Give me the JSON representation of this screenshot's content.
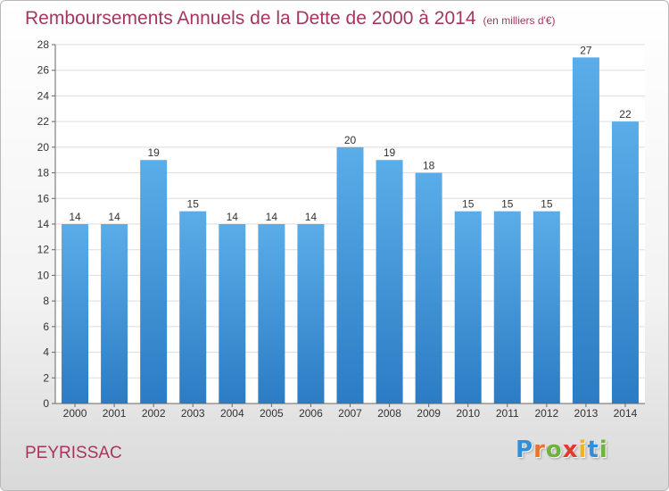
{
  "title": "Remboursements Annuels de la Dette de 2000 à 2014",
  "unit": "(en milliers d'€)",
  "place": "PEYRISSAC",
  "logo": {
    "letters": [
      "P",
      "r",
      "o",
      "x",
      "i",
      "t",
      "i"
    ],
    "colors": [
      "#2f8fd8",
      "#e8732a",
      "#6cb33f",
      "#e2382e",
      "#f0b323",
      "#2f8fd8",
      "#6cb33f"
    ]
  },
  "colors": {
    "bar": "#4a9fe0",
    "bar_dark": "#2b7cc4",
    "title": "#a6365f"
  },
  "chart_data": {
    "type": "bar",
    "categories": [
      "2000",
      "2001",
      "2002",
      "2003",
      "2004",
      "2005",
      "2006",
      "2007",
      "2008",
      "2009",
      "2010",
      "2011",
      "2012",
      "2013",
      "2014"
    ],
    "values": [
      14,
      14,
      19,
      15,
      14,
      14,
      14,
      20,
      19,
      18,
      15,
      15,
      15,
      27,
      22
    ],
    "ylim": [
      0,
      28
    ],
    "yticks": [
      0,
      2,
      4,
      6,
      8,
      10,
      12,
      14,
      16,
      18,
      20,
      22,
      24,
      26,
      28
    ],
    "grid": true,
    "legend": "none"
  }
}
